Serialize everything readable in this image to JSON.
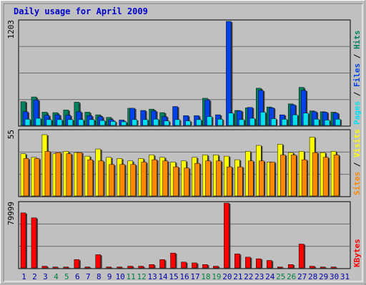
{
  "title": "Daily usage for April 2009",
  "colors": {
    "background": "#C0C0C0",
    "panel": "#C0C0C0",
    "gridline": "#6A6A72",
    "title": "#0000CC",
    "hits": "#00805C",
    "files": "#0042E8",
    "pages": "#00E0F0",
    "visits": "#FFFF00",
    "sites": "#FF8800",
    "kbytes": "#FF0000",
    "weekend_day": "#008040",
    "weekday": "#0000AA",
    "axis_max": "#000000",
    "shadow": "#404040"
  },
  "chart_data": [
    {
      "type": "bar",
      "name": "hits-files-pages",
      "ymax_label": "1203",
      "ylim": [
        0,
        1203
      ],
      "right_labels": [
        {
          "text": "Pages",
          "color_key": "pages"
        },
        {
          "text": " / ",
          "color_key": "axis_max"
        },
        {
          "text": "Files",
          "color_key": "files"
        },
        {
          "text": " / ",
          "color_key": "axis_max"
        },
        {
          "text": "Hits",
          "color_key": "hits"
        }
      ],
      "series": [
        {
          "name": "Hits",
          "color_key": "hits",
          "values": [
            280,
            335,
            160,
            155,
            185,
            275,
            160,
            130,
            100,
            0,
            205,
            0,
            195,
            155,
            0,
            0,
            0,
            320,
            0,
            0,
            180,
            210,
            435,
            220,
            0,
            255,
            445,
            175,
            165,
            160
          ]
        },
        {
          "name": "Files",
          "color_key": "files",
          "values": [
            165,
            300,
            125,
            130,
            125,
            165,
            120,
            110,
            75,
            70,
            205,
            180,
            175,
            110,
            225,
            120,
            120,
            300,
            130,
            1203,
            175,
            215,
            410,
            210,
            130,
            245,
            410,
            165,
            160,
            150
          ]
        },
        {
          "name": "Pages",
          "color_key": "pages",
          "values": [
            80,
            90,
            75,
            75,
            75,
            75,
            75,
            65,
            55,
            50,
            75,
            75,
            80,
            60,
            75,
            60,
            75,
            110,
            80,
            150,
            75,
            90,
            160,
            85,
            80,
            130,
            150,
            80,
            70,
            80
          ]
        }
      ]
    },
    {
      "type": "bar",
      "name": "visits-sites",
      "ymax_label": "55",
      "ylim": [
        0,
        55
      ],
      "right_labels": [
        {
          "text": "Sites",
          "color_key": "sites"
        },
        {
          "text": " / ",
          "color_key": "axis_max"
        },
        {
          "text": "Visits",
          "color_key": "visits"
        }
      ],
      "series": [
        {
          "name": "Visits",
          "color_key": "visits",
          "values": [
            36,
            33,
            52,
            36,
            38,
            37,
            34,
            40,
            33,
            32,
            30,
            32,
            35,
            33,
            29,
            30,
            33,
            35,
            35,
            34,
            31,
            38,
            43,
            29,
            44,
            37,
            38,
            50,
            37,
            38
          ]
        },
        {
          "name": "Sites",
          "color_key": "sites",
          "values": [
            32,
            32,
            38,
            37,
            36,
            37,
            31,
            30,
            27,
            27,
            27,
            29,
            31,
            30,
            25,
            24,
            28,
            30,
            30,
            25,
            25,
            30,
            30,
            29,
            35,
            35,
            31,
            37,
            33,
            35
          ]
        }
      ]
    },
    {
      "type": "bar",
      "name": "kbytes",
      "ymax_label": "79999",
      "ylim": [
        0,
        79999
      ],
      "right_labels": [
        {
          "text": "KBytes",
          "color_key": "kbytes"
        }
      ],
      "series": [
        {
          "name": "KBytes",
          "color_key": "kbytes",
          "values": [
            68000,
            62000,
            3000,
            2000,
            2000,
            11000,
            2000,
            17000,
            2000,
            2000,
            3000,
            3000,
            5000,
            11000,
            19000,
            8000,
            7000,
            5000,
            3000,
            80000,
            18000,
            14000,
            12000,
            10000,
            2000,
            5000,
            30000,
            3000,
            2000,
            2000
          ]
        }
      ]
    }
  ],
  "x_labels": [
    "1",
    "2",
    "3",
    "4",
    "5",
    "6",
    "7",
    "8",
    "9",
    "10",
    "11",
    "12",
    "13",
    "14",
    "15",
    "16",
    "17",
    "18",
    "19",
    "20",
    "21",
    "22",
    "23",
    "24",
    "25",
    "26",
    "27",
    "28",
    "29",
    "30",
    "31"
  ],
  "weekend_days": [
    4,
    5,
    11,
    12,
    18,
    19,
    25,
    26
  ]
}
